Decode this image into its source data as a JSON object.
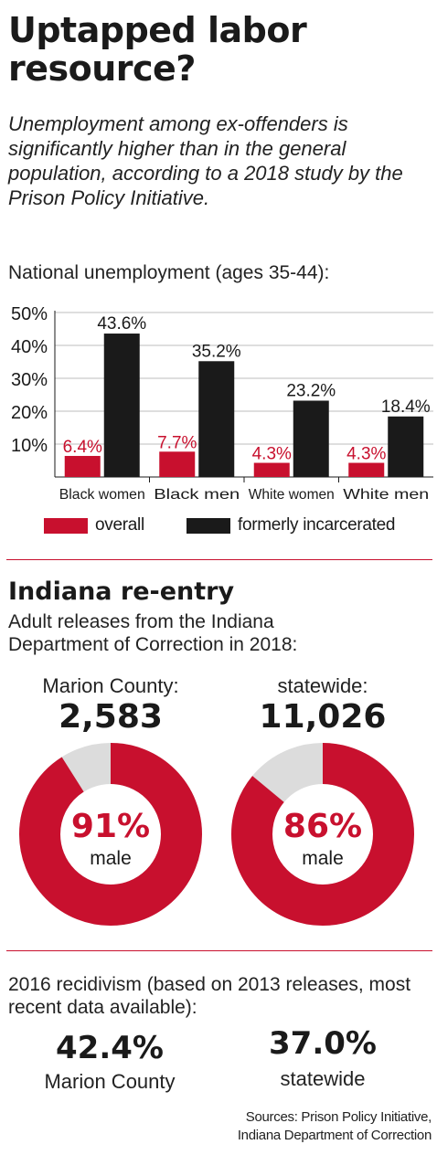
{
  "title": "Uptapped labor resource?",
  "subtitle": "Unemployment among ex-offenders is significantly higher than in the general population, according to a 2018 study by the Prison Policy Initiative.",
  "chart_data": {
    "type": "bar",
    "label": "National unemployment (ages 35-44):",
    "categories": [
      "Black women",
      "Black men",
      "White women",
      "White men"
    ],
    "series": [
      {
        "name": "overall",
        "values": [
          6.4,
          7.7,
          4.3,
          4.3
        ],
        "labels": [
          "6.4%",
          "7.7%",
          "4.3%",
          "4.3%"
        ],
        "color": "#c8102e"
      },
      {
        "name": "formerly incarcerated",
        "values": [
          43.6,
          35.2,
          23.2,
          18.4
        ],
        "labels": [
          "43.6%",
          "35.2%",
          "23.2%",
          "18.4%"
        ],
        "color": "#1a1a1a"
      }
    ],
    "yticks": [
      "10%",
      "20%",
      "30%",
      "40%",
      "50%"
    ],
    "ylim": [
      0,
      50
    ],
    "grid": true,
    "legend": "bottom"
  },
  "section2": {
    "heading": "Indiana re-entry",
    "label": "Adult releases from the Indiana Department of Correction in 2018:",
    "marion": {
      "label": "Marion County:",
      "number": "2,583",
      "percent_label": "91%",
      "sub": "male",
      "male_fraction": 0.91
    },
    "statewide": {
      "label": "statewide:",
      "number": "11,026",
      "percent_label": "86%",
      "sub": "male",
      "male_fraction": 0.86
    },
    "colors": {
      "male": "#c8102e",
      "other": "#dcdcdc"
    }
  },
  "recidivism": {
    "label": "2016 recidivism (based on 2013 releases, most recent data available):",
    "marion_value": "42.4%",
    "marion_caption": "Marion County",
    "statewide_value": "37.0%",
    "statewide_caption": "statewide"
  },
  "sources": {
    "line1": "Sources: Prison Policy Initiative,",
    "line2": "Indiana Department of Correction"
  }
}
